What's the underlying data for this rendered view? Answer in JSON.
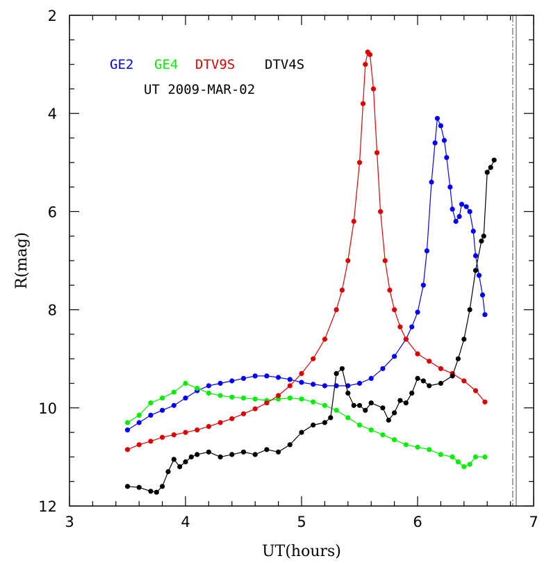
{
  "chart_data": {
    "type": "scatter",
    "title": "",
    "xlabel": "UT(hours)",
    "ylabel": "R(mag)",
    "xlim": [
      3,
      7
    ],
    "ylim": [
      12,
      2
    ],
    "y_inverted": true,
    "xticks": [
      3,
      4,
      5,
      6,
      7
    ],
    "yticks": [
      2,
      4,
      6,
      8,
      10,
      12
    ],
    "annotation": "UT 2009-MAR-02",
    "vertical_lines": [
      6.82,
      6.85
    ],
    "legend_placement": "top-left",
    "series": [
      {
        "name": "GE2",
        "color": "#0000ff",
        "points": [
          [
            3.5,
            10.45
          ],
          [
            3.6,
            10.3
          ],
          [
            3.7,
            10.15
          ],
          [
            3.8,
            10.05
          ],
          [
            3.9,
            9.95
          ],
          [
            4.0,
            9.8
          ],
          [
            4.1,
            9.65
          ],
          [
            4.2,
            9.55
          ],
          [
            4.3,
            9.5
          ],
          [
            4.4,
            9.45
          ],
          [
            4.5,
            9.4
          ],
          [
            4.6,
            9.35
          ],
          [
            4.7,
            9.35
          ],
          [
            4.8,
            9.38
          ],
          [
            4.9,
            9.42
          ],
          [
            5.0,
            9.48
          ],
          [
            5.1,
            9.52
          ],
          [
            5.2,
            9.55
          ],
          [
            5.3,
            9.55
          ],
          [
            5.4,
            9.55
          ],
          [
            5.5,
            9.5
          ],
          [
            5.6,
            9.4
          ],
          [
            5.7,
            9.2
          ],
          [
            5.8,
            8.95
          ],
          [
            5.9,
            8.6
          ],
          [
            5.95,
            8.35
          ],
          [
            6.0,
            8.05
          ],
          [
            6.05,
            7.5
          ],
          [
            6.08,
            6.8
          ],
          [
            6.12,
            5.4
          ],
          [
            6.15,
            4.6
          ],
          [
            6.17,
            4.1
          ],
          [
            6.2,
            4.25
          ],
          [
            6.23,
            4.55
          ],
          [
            6.25,
            4.9
          ],
          [
            6.28,
            5.5
          ],
          [
            6.3,
            5.95
          ],
          [
            6.33,
            6.2
          ],
          [
            6.36,
            6.1
          ],
          [
            6.38,
            5.85
          ],
          [
            6.42,
            5.9
          ],
          [
            6.45,
            6.0
          ],
          [
            6.48,
            6.4
          ],
          [
            6.5,
            6.9
          ],
          [
            6.53,
            7.3
          ],
          [
            6.56,
            7.7
          ],
          [
            6.58,
            8.1
          ]
        ]
      },
      {
        "name": "GE4",
        "color": "#00ee00",
        "points": [
          [
            3.5,
            10.3
          ],
          [
            3.6,
            10.15
          ],
          [
            3.7,
            9.9
          ],
          [
            3.8,
            9.8
          ],
          [
            3.9,
            9.68
          ],
          [
            4.0,
            9.5
          ],
          [
            4.1,
            9.6
          ],
          [
            4.2,
            9.7
          ],
          [
            4.3,
            9.75
          ],
          [
            4.4,
            9.78
          ],
          [
            4.5,
            9.8
          ],
          [
            4.6,
            9.82
          ],
          [
            4.7,
            9.85
          ],
          [
            4.8,
            9.82
          ],
          [
            4.9,
            9.8
          ],
          [
            5.0,
            9.82
          ],
          [
            5.1,
            9.88
          ],
          [
            5.2,
            9.95
          ],
          [
            5.3,
            10.05
          ],
          [
            5.4,
            10.2
          ],
          [
            5.5,
            10.35
          ],
          [
            5.6,
            10.45
          ],
          [
            5.7,
            10.55
          ],
          [
            5.8,
            10.65
          ],
          [
            5.9,
            10.75
          ],
          [
            6.0,
            10.8
          ],
          [
            6.1,
            10.85
          ],
          [
            6.2,
            10.95
          ],
          [
            6.3,
            11.0
          ],
          [
            6.35,
            11.1
          ],
          [
            6.4,
            11.2
          ],
          [
            6.45,
            11.15
          ],
          [
            6.5,
            11.0
          ],
          [
            6.58,
            11.0
          ]
        ]
      },
      {
        "name": "DTV9S",
        "color": "#dd0000",
        "points": [
          [
            3.5,
            10.85
          ],
          [
            3.6,
            10.75
          ],
          [
            3.7,
            10.68
          ],
          [
            3.8,
            10.6
          ],
          [
            3.9,
            10.55
          ],
          [
            4.0,
            10.5
          ],
          [
            4.1,
            10.45
          ],
          [
            4.2,
            10.38
          ],
          [
            4.3,
            10.3
          ],
          [
            4.4,
            10.22
          ],
          [
            4.5,
            10.12
          ],
          [
            4.6,
            10.02
          ],
          [
            4.7,
            9.9
          ],
          [
            4.8,
            9.75
          ],
          [
            4.9,
            9.55
          ],
          [
            5.0,
            9.3
          ],
          [
            5.1,
            9.0
          ],
          [
            5.2,
            8.6
          ],
          [
            5.3,
            8.0
          ],
          [
            5.35,
            7.6
          ],
          [
            5.4,
            7.0
          ],
          [
            5.45,
            6.2
          ],
          [
            5.5,
            5.0
          ],
          [
            5.53,
            3.8
          ],
          [
            5.55,
            3.0
          ],
          [
            5.57,
            2.75
          ],
          [
            5.59,
            2.8
          ],
          [
            5.62,
            3.5
          ],
          [
            5.65,
            4.8
          ],
          [
            5.68,
            6.0
          ],
          [
            5.72,
            7.0
          ],
          [
            5.76,
            7.6
          ],
          [
            5.8,
            8.0
          ],
          [
            5.85,
            8.35
          ],
          [
            5.9,
            8.6
          ],
          [
            6.0,
            8.9
          ],
          [
            6.1,
            9.05
          ],
          [
            6.2,
            9.2
          ],
          [
            6.3,
            9.3
          ],
          [
            6.4,
            9.45
          ],
          [
            6.5,
            9.65
          ],
          [
            6.58,
            9.88
          ]
        ]
      },
      {
        "name": "DTV4S",
        "color": "#000000",
        "points": [
          [
            3.5,
            11.6
          ],
          [
            3.6,
            11.62
          ],
          [
            3.7,
            11.7
          ],
          [
            3.75,
            11.72
          ],
          [
            3.8,
            11.6
          ],
          [
            3.85,
            11.3
          ],
          [
            3.9,
            11.05
          ],
          [
            3.95,
            11.2
          ],
          [
            4.0,
            11.1
          ],
          [
            4.05,
            11.0
          ],
          [
            4.1,
            10.95
          ],
          [
            4.2,
            10.9
          ],
          [
            4.3,
            11.0
          ],
          [
            4.4,
            10.95
          ],
          [
            4.5,
            10.9
          ],
          [
            4.6,
            10.95
          ],
          [
            4.7,
            10.85
          ],
          [
            4.8,
            10.9
          ],
          [
            4.9,
            10.75
          ],
          [
            5.0,
            10.5
          ],
          [
            5.1,
            10.35
          ],
          [
            5.2,
            10.3
          ],
          [
            5.25,
            10.2
          ],
          [
            5.3,
            9.3
          ],
          [
            5.35,
            9.2
          ],
          [
            5.4,
            9.7
          ],
          [
            5.45,
            9.95
          ],
          [
            5.5,
            9.95
          ],
          [
            5.55,
            10.05
          ],
          [
            5.6,
            9.9
          ],
          [
            5.7,
            10.0
          ],
          [
            5.75,
            10.25
          ],
          [
            5.8,
            10.1
          ],
          [
            5.85,
            9.85
          ],
          [
            5.9,
            9.9
          ],
          [
            5.95,
            9.7
          ],
          [
            6.0,
            9.4
          ],
          [
            6.05,
            9.45
          ],
          [
            6.1,
            9.55
          ],
          [
            6.2,
            9.5
          ],
          [
            6.3,
            9.35
          ],
          [
            6.35,
            9.0
          ],
          [
            6.4,
            8.6
          ],
          [
            6.45,
            8.0
          ],
          [
            6.5,
            7.2
          ],
          [
            6.55,
            6.6
          ],
          [
            6.57,
            6.5
          ],
          [
            6.6,
            5.2
          ],
          [
            6.63,
            5.1
          ],
          [
            6.66,
            4.95
          ]
        ]
      }
    ]
  }
}
